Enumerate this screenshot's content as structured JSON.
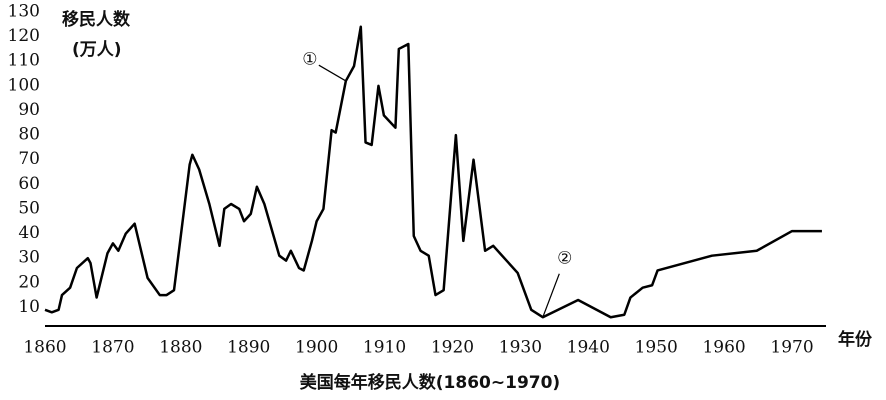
{
  "chart_data": {
    "type": "line",
    "title": "美国每年移民人数(1860~1970)",
    "y_label": "移民人数",
    "y_unit": "(万人)",
    "x_label": "年份",
    "annotations": [
      {
        "text": "①",
        "x": 1904.3,
        "y": 102
      },
      {
        "text": "②",
        "x": 1933.3,
        "y": 6
      }
    ],
    "color": "#000000",
    "xlim": [
      1860,
      1975
    ],
    "xticks": [
      1860,
      1870,
      1880,
      1890,
      1900,
      1910,
      1920,
      1930,
      1940,
      1950,
      1960,
      1970
    ],
    "ylim": [
      0,
      130
    ],
    "yticks": [
      10,
      20,
      30,
      40,
      50,
      60,
      70,
      80,
      90,
      100,
      110,
      120,
      130
    ],
    "x": [
      1860,
      1861,
      1862,
      1862.5,
      1863.7,
      1864.7,
      1866.3,
      1866.7,
      1867.6,
      1869.2,
      1870,
      1870.8,
      1871.9,
      1873.2,
      1875.1,
      1876.9,
      1877.9,
      1879,
      1880.4,
      1881.3,
      1881.7,
      1882.7,
      1884.2,
      1885.7,
      1886.4,
      1887.4,
      1888.6,
      1889.3,
      1890.3,
      1891.2,
      1892.3,
      1894.5,
      1895.5,
      1896.2,
      1897.4,
      1898.1,
      1899.3,
      1900,
      1901,
      1902.2,
      1902.8,
      1904.3,
      1905.5,
      1906.5,
      1907.2,
      1908.1,
      1909.1,
      1909.9,
      1911.6,
      1912.1,
      1913.5,
      1914.3,
      1915.3,
      1916.5,
      1917.5,
      1918.7,
      1920.5,
      1921.6,
      1923.1,
      1924.8,
      1926,
      1929.6,
      1931.6,
      1933.3,
      1938.5,
      1943.3,
      1945.3,
      1946.2,
      1948,
      1949.4,
      1950.2,
      1958.2,
      1964.8,
      1970,
      1974.4
    ],
    "values": [
      9,
      8,
      9,
      15,
      18,
      26,
      30,
      28,
      14,
      32,
      36,
      33,
      40,
      44,
      22,
      15,
      15,
      17,
      48,
      68,
      72,
      66,
      52,
      35,
      50,
      52,
      50,
      45,
      48,
      59,
      52,
      31,
      29,
      33,
      26,
      25,
      37,
      45,
      50,
      82,
      81,
      102,
      108,
      124,
      77,
      76,
      100,
      88,
      83,
      115,
      117,
      39,
      33,
      31,
      15,
      17,
      80,
      37,
      70,
      33,
      35,
      24,
      9,
      6,
      13,
      6,
      7,
      14,
      18,
      19,
      25,
      31,
      33,
      41,
      41
    ]
  }
}
